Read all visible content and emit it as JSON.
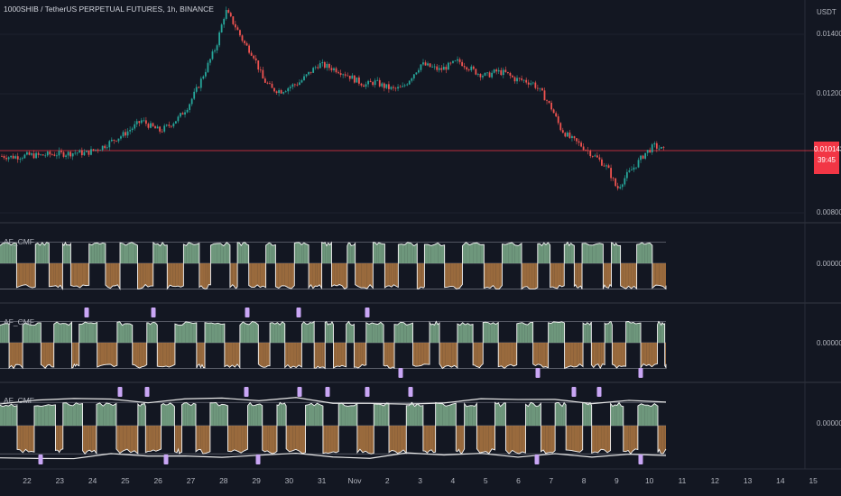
{
  "header": {
    "symbol_title": "1000SHIB / TetherUS PERPETUAL FUTURES, 1h, BINANCE"
  },
  "price_axis": {
    "currency": "USDT",
    "labels": [
      "0.014000",
      "0.012000",
      "0.008000"
    ],
    "last_price": "0.010143",
    "countdown": "39:45"
  },
  "panes": [
    {
      "title": "AF_CMF",
      "axis_label": "0.000000"
    },
    {
      "title": "AF_CMF",
      "axis_label": "0.000000"
    },
    {
      "title": "AF_CMF",
      "axis_label": "0.000000"
    }
  ],
  "time_axis": {
    "labels": [
      "22",
      "23",
      "24",
      "25",
      "26",
      "27",
      "28",
      "29",
      "30",
      "31",
      "Nov",
      "2",
      "3",
      "4",
      "5",
      "6",
      "7",
      "8",
      "9",
      "10",
      "11",
      "12",
      "13",
      "14",
      "15"
    ]
  },
  "colors": {
    "background": "#131722",
    "bull": "#26a69a",
    "bear": "#ef5350",
    "green_fill": "#7fae8c",
    "orange_fill": "#b27942",
    "marker": "#c9a6f5",
    "last_price": "#f23645"
  },
  "chart_data": {
    "type": "candlestick",
    "price_series": [
      0.00991,
      0.00988,
      0.0099,
      0.00994,
      0.00992,
      0.00996,
      0.00998,
      0.00999,
      0.01003,
      0.01,
      0.01012,
      0.01025,
      0.01045,
      0.01062,
      0.01085,
      0.0111,
      0.0109,
      0.01075,
      0.01095,
      0.0112,
      0.0116,
      0.0122,
      0.0129,
      0.0136,
      0.0148,
      0.0143,
      0.0137,
      0.0133,
      0.0125,
      0.01215,
      0.0121,
      0.01225,
      0.0124,
      0.0127,
      0.013,
      0.0129,
      0.0128,
      0.01265,
      0.01245,
      0.0123,
      0.0124,
      0.01225,
      0.01215,
      0.0122,
      0.0126,
      0.013,
      0.0129,
      0.0128,
      0.01295,
      0.0131,
      0.0129,
      0.0127,
      0.0126,
      0.01275,
      0.0127,
      0.0125,
      0.01245,
      0.01235,
      0.012,
      0.0115,
      0.0108,
      0.0105,
      0.0103,
      0.01005,
      0.0098,
      0.0095,
      0.0088,
      0.00925,
      0.0096,
      0.01,
      0.01025,
      0.0101
    ]
  }
}
